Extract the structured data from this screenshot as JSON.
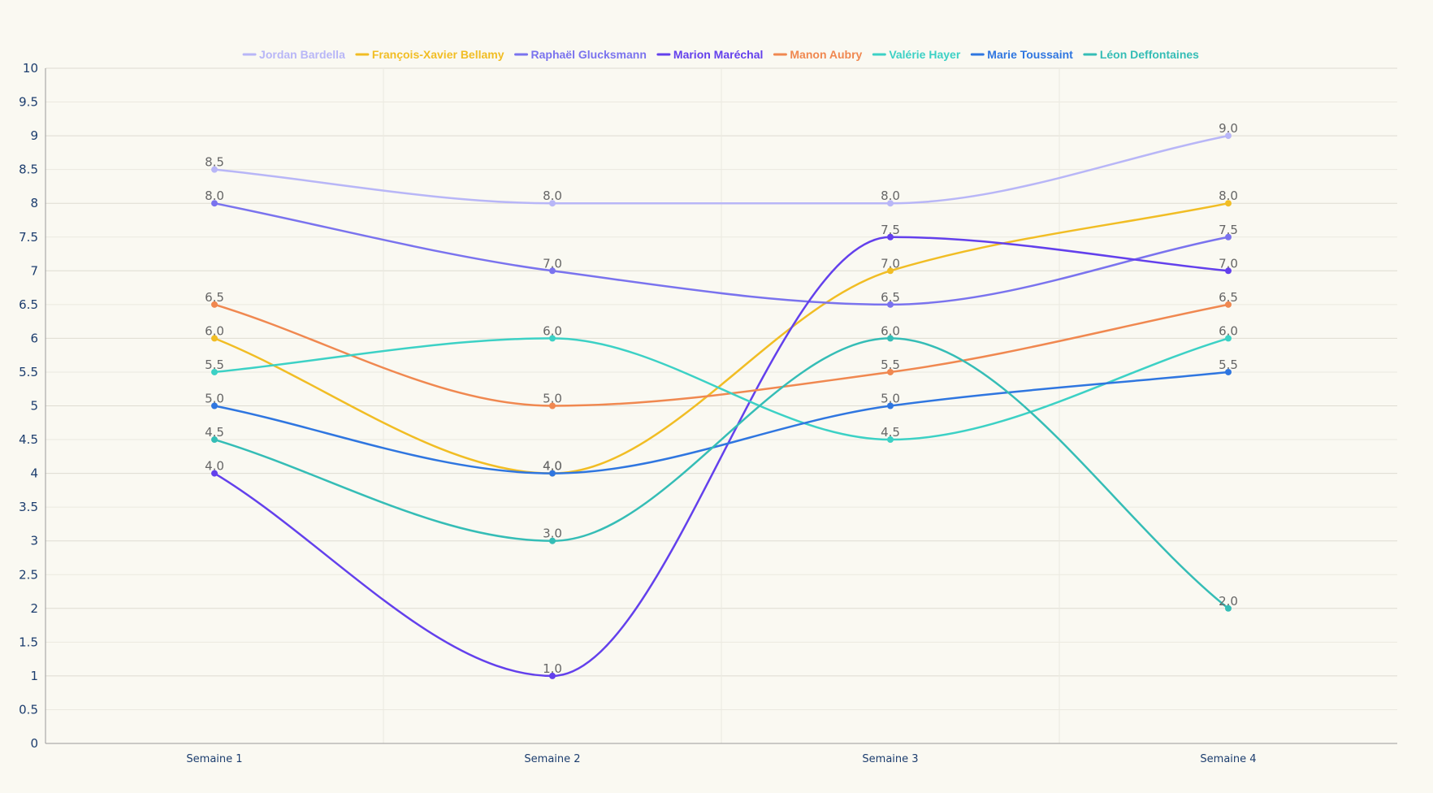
{
  "chart_data": {
    "type": "line",
    "title": "",
    "xlabel": "",
    "ylabel": "",
    "categories": [
      "Semaine 1",
      "Semaine 2",
      "Semaine 3",
      "Semaine 4"
    ],
    "ylim": [
      0,
      10
    ],
    "yticks": [
      "0",
      "0.5",
      "1",
      "1.5",
      "2",
      "2.5",
      "3",
      "3.5",
      "4",
      "4.5",
      "5",
      "5.5",
      "6",
      "6.5",
      "7",
      "7.5",
      "8",
      "8.5",
      "9",
      "9.5",
      "10"
    ],
    "grid": true,
    "legend_position": "top",
    "smooth": true,
    "series": [
      {
        "name": "Jordan Bardella",
        "color": "#b8b6f7",
        "values": [
          8.5,
          8.0,
          8.0,
          9.0
        ],
        "labels": [
          "8.5",
          "8.0",
          "8.0",
          "9.0"
        ]
      },
      {
        "name": "François-Xavier Bellamy",
        "color": "#f1bd24",
        "values": [
          6.0,
          4.0,
          7.0,
          8.0
        ],
        "labels": [
          "6.0",
          "4.0",
          "7.0",
          "8.0"
        ]
      },
      {
        "name": "Raphaël Glucksmann",
        "color": "#7a73ee",
        "values": [
          8.0,
          7.0,
          6.5,
          7.5
        ],
        "labels": [
          "8.0",
          "7.0",
          "6.5",
          "7.5"
        ]
      },
      {
        "name": "Marion Maréchal",
        "color": "#6340ec",
        "values": [
          4.0,
          1.0,
          7.5,
          7.0
        ],
        "labels": [
          "4.0",
          "1.0",
          "7.5",
          "7.0"
        ]
      },
      {
        "name": "Manon Aubry",
        "color": "#f08850",
        "values": [
          6.5,
          5.0,
          5.5,
          6.5
        ],
        "labels": [
          "6.5",
          "5.0",
          "5.5",
          "6.5"
        ]
      },
      {
        "name": "Valérie Hayer",
        "color": "#3cd1c5",
        "values": [
          5.5,
          6.0,
          4.5,
          6.0
        ],
        "labels": [
          "5.5",
          "6.0",
          "4.5",
          "6.0"
        ]
      },
      {
        "name": "Marie Toussaint",
        "color": "#2f76e0",
        "values": [
          5.0,
          4.0,
          5.0,
          5.5
        ],
        "labels": [
          "5.0",
          "4.0",
          "5.0",
          "5.5"
        ]
      },
      {
        "name": "Léon Deffontaines",
        "color": "#35bdb6",
        "values": [
          4.5,
          3.0,
          6.0,
          2.0
        ],
        "labels": [
          "4.5",
          "3.0",
          "6.0",
          "2.0"
        ]
      }
    ]
  }
}
